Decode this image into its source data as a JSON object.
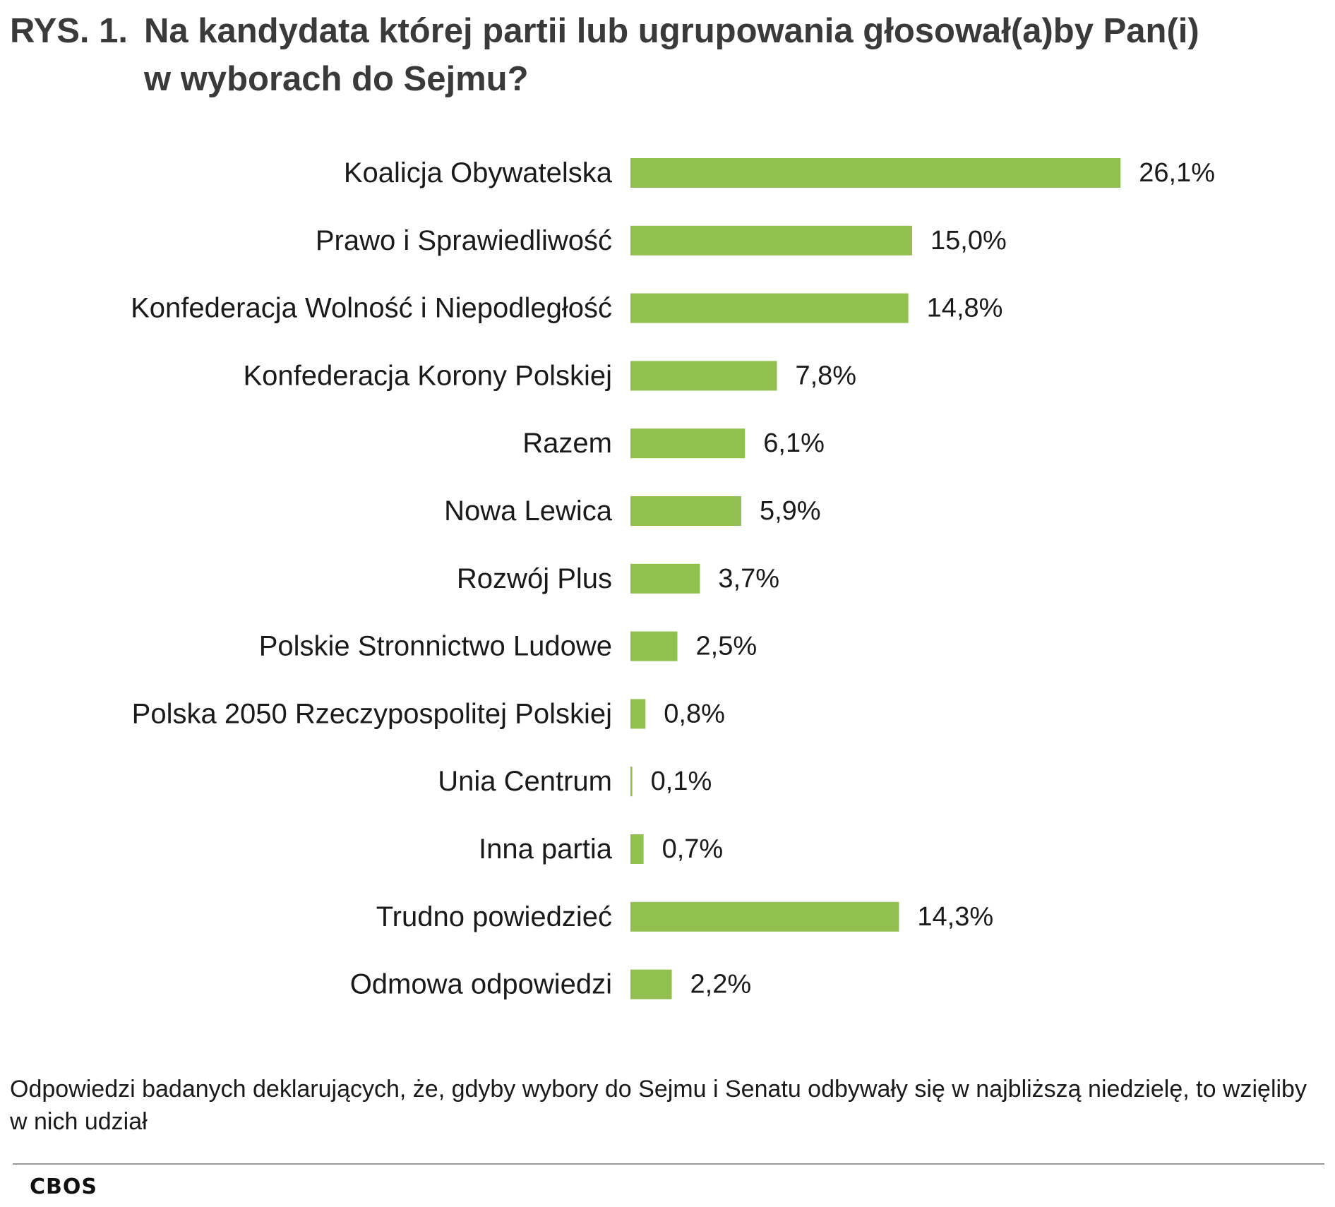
{
  "title": {
    "prefix": "RYS. 1.",
    "line1": "Na kandydata której partii lub ugrupowania głosował(a)by Pan(i)",
    "line2": "w wyborach do Sejmu?"
  },
  "chart_data": {
    "type": "bar",
    "orientation": "horizontal",
    "title": "RYS. 1. Na kandydata której partii lub ugrupowania głosował(a)by Pan(i) w wyborach do Sejmu?",
    "categories": [
      "Koalicja Obywatelska",
      "Prawo i Sprawiedliwość",
      "Konfederacja Wolność i Niepodległość",
      "Konfederacja Korony Polskiej",
      "Razem",
      "Nowa Lewica",
      "Rozwój Plus",
      "Polskie Stronnictwo Ludowe",
      "Polska 2050 Rzeczypospolitej Polskiej",
      "Unia Centrum",
      "Inna partia",
      "Trudno powiedzieć",
      "Odmowa odpowiedzi"
    ],
    "values": [
      26.1,
      15.0,
      14.8,
      7.8,
      6.1,
      5.9,
      3.7,
      2.5,
      0.8,
      0.1,
      0.7,
      14.3,
      2.2
    ],
    "value_labels": [
      "26,1%",
      "15,0%",
      "14,8%",
      "7,8%",
      "6,1%",
      "5,9%",
      "3,7%",
      "2,5%",
      "0,8%",
      "0,1%",
      "0,7%",
      "14,3%",
      "2,2%"
    ],
    "unit": "%",
    "bar_color": "#92c050",
    "grid": false,
    "legend": "none"
  },
  "note": "Odpowiedzi badanych deklarujących, że, gdyby wybory do Sejmu i Senatu odbywały się w najbliższą niedzielę, to wzięliby w nich udział",
  "source": "CBOS"
}
